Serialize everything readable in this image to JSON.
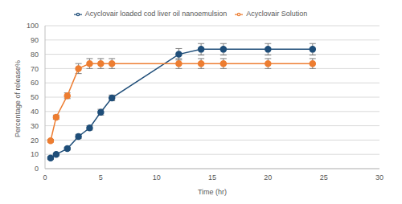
{
  "chart_data": {
    "type": "line",
    "x_label": "Time (hr)",
    "y_label": "Percentage of release%",
    "x": [
      0.5,
      1,
      2,
      3,
      4,
      5,
      6,
      12,
      14,
      16,
      20,
      24
    ],
    "series": [
      {
        "name": "Acyclovair  loaded cod liver oil nanoemulsion",
        "color": "#1f4e79",
        "values": [
          7.5,
          10,
          14,
          22.5,
          28.5,
          39.5,
          49.5,
          80,
          83.5,
          83.5,
          83.5,
          83.5
        ],
        "errors": [
          1,
          1,
          1,
          1.5,
          1.5,
          2,
          2,
          4,
          4,
          4,
          4,
          4
        ]
      },
      {
        "name": "Acyclovair Solution",
        "color": "#ed7d31",
        "values": [
          19.5,
          36,
          51,
          70,
          73.5,
          73.5,
          73.5,
          73.5,
          73.5,
          73.5,
          73.5,
          73.5
        ],
        "errors": [
          1,
          1.5,
          2,
          3.5,
          3.5,
          3.5,
          3.5,
          3.5,
          3.5,
          3.5,
          3.5,
          3.5
        ]
      }
    ],
    "xlim": [
      0,
      30
    ],
    "xticks": [
      0,
      5,
      10,
      15,
      20,
      25,
      30
    ],
    "ylim": [
      0,
      100
    ],
    "yticks": [
      0,
      10,
      20,
      30,
      40,
      50,
      60,
      70,
      80,
      90,
      100
    ],
    "grid": true,
    "legend": "top"
  }
}
